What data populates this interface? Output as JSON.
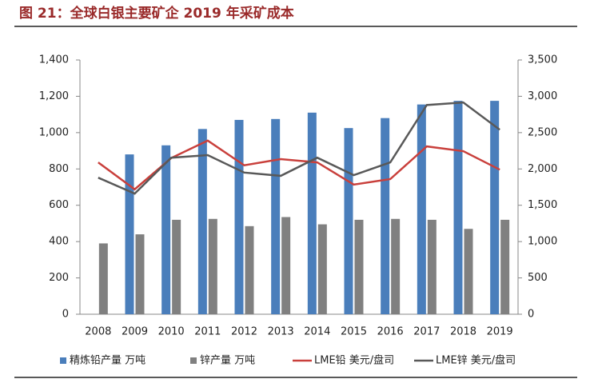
{
  "chart_data": {
    "type": "bar-line",
    "title": "图 21：全球白银主要矿企 2019 年采矿成本",
    "categories": [
      "2008",
      "2009",
      "2010",
      "2011",
      "2012",
      "2013",
      "2014",
      "2015",
      "2016",
      "2017",
      "2018",
      "2019"
    ],
    "series": [
      {
        "name": "精炼铅产量 万吨",
        "color": "#4a7ebb",
        "type": "bar",
        "values": [
          null,
          880,
          930,
          1020,
          1070,
          1075,
          1110,
          1025,
          1080,
          1155,
          1175,
          1175
        ]
      },
      {
        "name": "锌产量 万吨",
        "color": "#808080",
        "type": "bar",
        "values": [
          390,
          440,
          520,
          525,
          485,
          535,
          495,
          520,
          525,
          520,
          470,
          520
        ]
      },
      {
        "name": "LME铅 美元/盘司",
        "color": "#c9403c",
        "type": "line",
        "axis": "y2",
        "values": [
          2090,
          1720,
          2150,
          2390,
          2050,
          2135,
          2090,
          1785,
          1860,
          2310,
          2245,
          1990
        ]
      },
      {
        "name": "LME锌 美元/盘司",
        "color": "#595959",
        "type": "line",
        "axis": "y2",
        "values": [
          1880,
          1660,
          2155,
          2190,
          1950,
          1905,
          2155,
          1915,
          2090,
          2880,
          2915,
          2540
        ]
      }
    ],
    "ylim": [
      0,
      1400
    ],
    "yticks": [
      0,
      200,
      400,
      600,
      800,
      {
        "value": 1000,
        "label": "1,000"
      },
      {
        "value": 1200,
        "label": "1,200"
      },
      {
        "value": 1400,
        "label": "1,400"
      }
    ],
    "y2lim": [
      0,
      3500
    ],
    "y2ticks": [
      0,
      500,
      {
        "value": 1000,
        "label": "1,000"
      },
      {
        "value": 1500,
        "label": "1,500"
      },
      {
        "value": 2000,
        "label": "2,000"
      },
      {
        "value": 2500,
        "label": "2,500"
      },
      {
        "value": 3000,
        "label": "3,000"
      },
      {
        "value": 3500,
        "label": "3,500"
      }
    ],
    "grid": false,
    "legend": "bottom"
  }
}
